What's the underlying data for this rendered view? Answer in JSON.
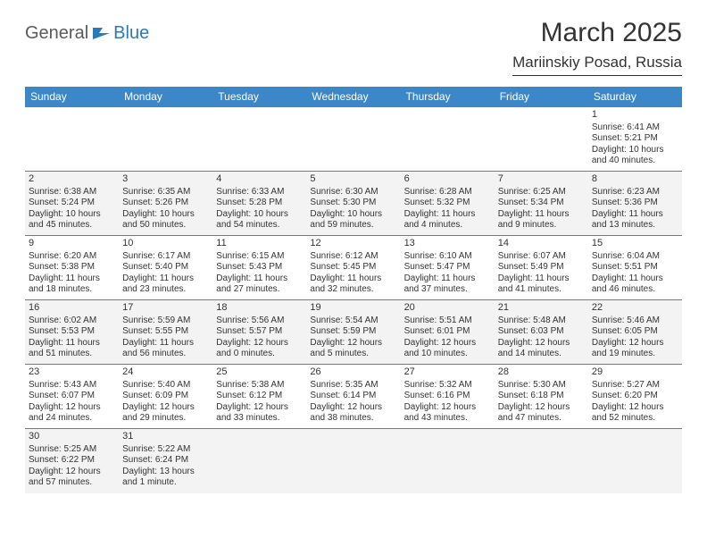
{
  "logo": {
    "text1": "General",
    "text2": "Blue"
  },
  "title": "March 2025",
  "location": "Mariinskiy Posad, Russia",
  "colors": {
    "header_bg": "#3b87c8",
    "header_text": "#ffffff",
    "border": "#3b87c8",
    "shaded_row": "#f3f3f3",
    "text": "#333333",
    "logo_gray": "#5a5a5a",
    "logo_blue": "#2a7ab9"
  },
  "day_headers": [
    "Sunday",
    "Monday",
    "Tuesday",
    "Wednesday",
    "Thursday",
    "Friday",
    "Saturday"
  ],
  "weeks": [
    {
      "shaded": false,
      "cells": [
        {
          "empty": true
        },
        {
          "empty": true
        },
        {
          "empty": true
        },
        {
          "empty": true
        },
        {
          "empty": true
        },
        {
          "empty": true
        },
        {
          "day": "1",
          "sunrise": "Sunrise: 6:41 AM",
          "sunset": "Sunset: 5:21 PM",
          "daylight1": "Daylight: 10 hours",
          "daylight2": "and 40 minutes."
        }
      ]
    },
    {
      "shaded": true,
      "cells": [
        {
          "day": "2",
          "sunrise": "Sunrise: 6:38 AM",
          "sunset": "Sunset: 5:24 PM",
          "daylight1": "Daylight: 10 hours",
          "daylight2": "and 45 minutes."
        },
        {
          "day": "3",
          "sunrise": "Sunrise: 6:35 AM",
          "sunset": "Sunset: 5:26 PM",
          "daylight1": "Daylight: 10 hours",
          "daylight2": "and 50 minutes."
        },
        {
          "day": "4",
          "sunrise": "Sunrise: 6:33 AM",
          "sunset": "Sunset: 5:28 PM",
          "daylight1": "Daylight: 10 hours",
          "daylight2": "and 54 minutes."
        },
        {
          "day": "5",
          "sunrise": "Sunrise: 6:30 AM",
          "sunset": "Sunset: 5:30 PM",
          "daylight1": "Daylight: 10 hours",
          "daylight2": "and 59 minutes."
        },
        {
          "day": "6",
          "sunrise": "Sunrise: 6:28 AM",
          "sunset": "Sunset: 5:32 PM",
          "daylight1": "Daylight: 11 hours",
          "daylight2": "and 4 minutes."
        },
        {
          "day": "7",
          "sunrise": "Sunrise: 6:25 AM",
          "sunset": "Sunset: 5:34 PM",
          "daylight1": "Daylight: 11 hours",
          "daylight2": "and 9 minutes."
        },
        {
          "day": "8",
          "sunrise": "Sunrise: 6:23 AM",
          "sunset": "Sunset: 5:36 PM",
          "daylight1": "Daylight: 11 hours",
          "daylight2": "and 13 minutes."
        }
      ]
    },
    {
      "shaded": false,
      "cells": [
        {
          "day": "9",
          "sunrise": "Sunrise: 6:20 AM",
          "sunset": "Sunset: 5:38 PM",
          "daylight1": "Daylight: 11 hours",
          "daylight2": "and 18 minutes."
        },
        {
          "day": "10",
          "sunrise": "Sunrise: 6:17 AM",
          "sunset": "Sunset: 5:40 PM",
          "daylight1": "Daylight: 11 hours",
          "daylight2": "and 23 minutes."
        },
        {
          "day": "11",
          "sunrise": "Sunrise: 6:15 AM",
          "sunset": "Sunset: 5:43 PM",
          "daylight1": "Daylight: 11 hours",
          "daylight2": "and 27 minutes."
        },
        {
          "day": "12",
          "sunrise": "Sunrise: 6:12 AM",
          "sunset": "Sunset: 5:45 PM",
          "daylight1": "Daylight: 11 hours",
          "daylight2": "and 32 minutes."
        },
        {
          "day": "13",
          "sunrise": "Sunrise: 6:10 AM",
          "sunset": "Sunset: 5:47 PM",
          "daylight1": "Daylight: 11 hours",
          "daylight2": "and 37 minutes."
        },
        {
          "day": "14",
          "sunrise": "Sunrise: 6:07 AM",
          "sunset": "Sunset: 5:49 PM",
          "daylight1": "Daylight: 11 hours",
          "daylight2": "and 41 minutes."
        },
        {
          "day": "15",
          "sunrise": "Sunrise: 6:04 AM",
          "sunset": "Sunset: 5:51 PM",
          "daylight1": "Daylight: 11 hours",
          "daylight2": "and 46 minutes."
        }
      ]
    },
    {
      "shaded": true,
      "cells": [
        {
          "day": "16",
          "sunrise": "Sunrise: 6:02 AM",
          "sunset": "Sunset: 5:53 PM",
          "daylight1": "Daylight: 11 hours",
          "daylight2": "and 51 minutes."
        },
        {
          "day": "17",
          "sunrise": "Sunrise: 5:59 AM",
          "sunset": "Sunset: 5:55 PM",
          "daylight1": "Daylight: 11 hours",
          "daylight2": "and 56 minutes."
        },
        {
          "day": "18",
          "sunrise": "Sunrise: 5:56 AM",
          "sunset": "Sunset: 5:57 PM",
          "daylight1": "Daylight: 12 hours",
          "daylight2": "and 0 minutes."
        },
        {
          "day": "19",
          "sunrise": "Sunrise: 5:54 AM",
          "sunset": "Sunset: 5:59 PM",
          "daylight1": "Daylight: 12 hours",
          "daylight2": "and 5 minutes."
        },
        {
          "day": "20",
          "sunrise": "Sunrise: 5:51 AM",
          "sunset": "Sunset: 6:01 PM",
          "daylight1": "Daylight: 12 hours",
          "daylight2": "and 10 minutes."
        },
        {
          "day": "21",
          "sunrise": "Sunrise: 5:48 AM",
          "sunset": "Sunset: 6:03 PM",
          "daylight1": "Daylight: 12 hours",
          "daylight2": "and 14 minutes."
        },
        {
          "day": "22",
          "sunrise": "Sunrise: 5:46 AM",
          "sunset": "Sunset: 6:05 PM",
          "daylight1": "Daylight: 12 hours",
          "daylight2": "and 19 minutes."
        }
      ]
    },
    {
      "shaded": false,
      "cells": [
        {
          "day": "23",
          "sunrise": "Sunrise: 5:43 AM",
          "sunset": "Sunset: 6:07 PM",
          "daylight1": "Daylight: 12 hours",
          "daylight2": "and 24 minutes."
        },
        {
          "day": "24",
          "sunrise": "Sunrise: 5:40 AM",
          "sunset": "Sunset: 6:09 PM",
          "daylight1": "Daylight: 12 hours",
          "daylight2": "and 29 minutes."
        },
        {
          "day": "25",
          "sunrise": "Sunrise: 5:38 AM",
          "sunset": "Sunset: 6:12 PM",
          "daylight1": "Daylight: 12 hours",
          "daylight2": "and 33 minutes."
        },
        {
          "day": "26",
          "sunrise": "Sunrise: 5:35 AM",
          "sunset": "Sunset: 6:14 PM",
          "daylight1": "Daylight: 12 hours",
          "daylight2": "and 38 minutes."
        },
        {
          "day": "27",
          "sunrise": "Sunrise: 5:32 AM",
          "sunset": "Sunset: 6:16 PM",
          "daylight1": "Daylight: 12 hours",
          "daylight2": "and 43 minutes."
        },
        {
          "day": "28",
          "sunrise": "Sunrise: 5:30 AM",
          "sunset": "Sunset: 6:18 PM",
          "daylight1": "Daylight: 12 hours",
          "daylight2": "and 47 minutes."
        },
        {
          "day": "29",
          "sunrise": "Sunrise: 5:27 AM",
          "sunset": "Sunset: 6:20 PM",
          "daylight1": "Daylight: 12 hours",
          "daylight2": "and 52 minutes."
        }
      ]
    },
    {
      "shaded": true,
      "cells": [
        {
          "day": "30",
          "sunrise": "Sunrise: 5:25 AM",
          "sunset": "Sunset: 6:22 PM",
          "daylight1": "Daylight: 12 hours",
          "daylight2": "and 57 minutes."
        },
        {
          "day": "31",
          "sunrise": "Sunrise: 5:22 AM",
          "sunset": "Sunset: 6:24 PM",
          "daylight1": "Daylight: 13 hours",
          "daylight2": "and 1 minute."
        },
        {
          "empty": true
        },
        {
          "empty": true
        },
        {
          "empty": true
        },
        {
          "empty": true
        },
        {
          "empty": true
        }
      ]
    }
  ]
}
